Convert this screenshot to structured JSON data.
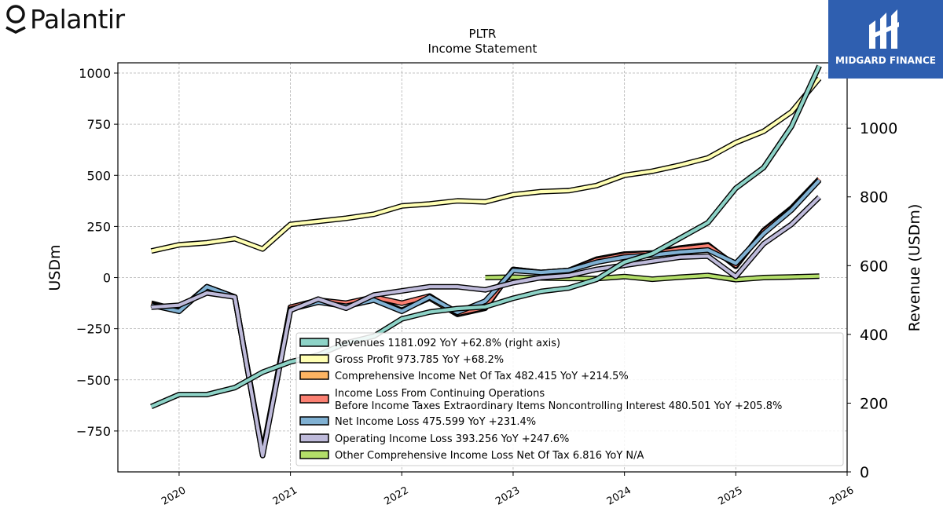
{
  "brand": {
    "name": "Palantir",
    "badge": "MIDGARD FINANCE",
    "badge_color": "#2f5fb0"
  },
  "chart_data": {
    "type": "line",
    "title": "PLTR",
    "subtitle": "Income Statement",
    "ylabel": "USDm",
    "y2label": "Revenue (USDm)",
    "xlim": [
      2019.45,
      2026.0
    ],
    "ylim": [
      -950,
      1050
    ],
    "y2lim": [
      0,
      1190
    ],
    "yticks": [
      -750,
      -500,
      -250,
      0,
      250,
      500,
      750,
      1000
    ],
    "ytick_labels": [
      "−750",
      "−500",
      "−250",
      "0",
      "250",
      "500",
      "750",
      "1000"
    ],
    "y2ticks": [
      0,
      200,
      400,
      600,
      800,
      1000
    ],
    "y2tick_labels": [
      "0",
      "200",
      "400",
      "600",
      "800",
      "1000"
    ],
    "xticks": [
      2020,
      2021,
      2022,
      2023,
      2024,
      2025,
      2026
    ],
    "xtick_labels": [
      "2020",
      "2021",
      "2022",
      "2023",
      "2024",
      "2025",
      "2026"
    ],
    "grid": true,
    "legend_position": "lower-right",
    "series": [
      {
        "name": "Revenues 1181.092 YoY +62.8% (right axis)",
        "axis": "right",
        "color": "#8dd3c7",
        "x": [
          2019.75,
          2020.0,
          2020.25,
          2020.5,
          2020.75,
          2021.0,
          2021.25,
          2021.5,
          2021.75,
          2022.0,
          2022.25,
          2022.5,
          2022.75,
          2023.0,
          2023.25,
          2023.5,
          2023.75,
          2024.0,
          2024.25,
          2024.5,
          2024.75,
          2025.0,
          2025.25,
          2025.5,
          2025.75
        ],
        "values": [
          190,
          225,
          225,
          245,
          290,
          320,
          340,
          375,
          395,
          445,
          465,
          475,
          480,
          505,
          525,
          535,
          560,
          610,
          635,
          680,
          725,
          825,
          885,
          1005,
          1181
        ]
      },
      {
        "name": "Gross Profit 973.785 YoY +68.2%",
        "axis": "left",
        "color": "#ffffb3",
        "x": [
          2019.75,
          2020.0,
          2020.25,
          2020.5,
          2020.75,
          2021.0,
          2021.25,
          2021.5,
          2021.75,
          2022.0,
          2022.25,
          2022.5,
          2022.75,
          2023.0,
          2023.25,
          2023.5,
          2023.75,
          2024.0,
          2024.25,
          2024.5,
          2024.75,
          2025.0,
          2025.25,
          2025.5,
          2025.75
        ],
        "values": [
          130,
          160,
          170,
          190,
          140,
          260,
          275,
          290,
          310,
          350,
          360,
          375,
          370,
          405,
          420,
          425,
          450,
          500,
          520,
          550,
          585,
          660,
          715,
          810,
          974
        ]
      },
      {
        "name": "Comprehensive Income Net Of Tax 482.415 YoY +214.5%",
        "axis": "left",
        "color": "#fdb462",
        "x": [
          2019.75,
          2020.0,
          2020.25,
          2020.5,
          2020.75,
          2021.0,
          2021.25,
          2021.5,
          2021.75,
          2022.0,
          2022.25,
          2022.5,
          2022.75,
          2023.0,
          2023.25,
          2023.5,
          2023.75,
          2024.0,
          2024.25,
          2024.5,
          2024.75,
          2025.0,
          2025.25,
          2025.5,
          2025.75
        ],
        "values": [
          -125,
          -160,
          -45,
          -95,
          -865,
          -145,
          -115,
          -130,
          -105,
          -160,
          -100,
          -180,
          -150,
          40,
          25,
          35,
          90,
          115,
          120,
          145,
          160,
          55,
          230,
          340,
          482
        ]
      },
      {
        "name": "Income Loss From Continuing Operations\nBefore Income Taxes Extraordinary Items Noncontrolling Interest 480.501 YoY +205.8%",
        "axis": "left",
        "color": "#fb8072",
        "x": [
          2019.75,
          2020.0,
          2020.25,
          2020.5,
          2020.75,
          2021.0,
          2021.25,
          2021.5,
          2021.75,
          2022.0,
          2022.25,
          2022.5,
          2022.75,
          2023.0,
          2023.25,
          2023.5,
          2023.75,
          2024.0,
          2024.25,
          2024.5,
          2024.75,
          2025.0,
          2025.25,
          2025.5,
          2025.75
        ],
        "values": [
          -130,
          -165,
          -45,
          -95,
          -855,
          -145,
          -110,
          -125,
          -95,
          -125,
          -90,
          -175,
          -145,
          40,
          25,
          35,
          85,
          110,
          118,
          140,
          155,
          60,
          225,
          335,
          481
        ]
      },
      {
        "name": "Net Income Loss 475.599 YoY +231.4%",
        "axis": "left",
        "color": "#80b1d3",
        "x": [
          2019.75,
          2020.0,
          2020.25,
          2020.5,
          2020.75,
          2021.0,
          2021.25,
          2021.5,
          2021.75,
          2022.0,
          2022.25,
          2022.5,
          2022.75,
          2023.0,
          2023.25,
          2023.5,
          2023.75,
          2024.0,
          2024.25,
          2024.5,
          2024.75,
          2025.0,
          2025.25,
          2025.5,
          2025.75
        ],
        "values": [
          -135,
          -165,
          -45,
          -95,
          -865,
          -155,
          -120,
          -140,
          -110,
          -165,
          -95,
          -170,
          -115,
          35,
          25,
          35,
          75,
          100,
          110,
          125,
          135,
          70,
          215,
          330,
          476
        ]
      },
      {
        "name": "Operating Income Loss 393.256 YoY +247.6%",
        "axis": "left",
        "color": "#bebada",
        "x": [
          2019.75,
          2020.0,
          2020.25,
          2020.5,
          2020.75,
          2021.0,
          2021.25,
          2021.5,
          2021.75,
          2022.0,
          2022.25,
          2022.5,
          2022.75,
          2023.0,
          2023.25,
          2023.5,
          2023.75,
          2024.0,
          2024.25,
          2024.5,
          2024.75,
          2025.0,
          2025.25,
          2025.5,
          2025.75
        ],
        "values": [
          -145,
          -135,
          -75,
          -95,
          -870,
          -160,
          -105,
          -150,
          -85,
          -65,
          -45,
          -45,
          -60,
          -25,
          0,
          10,
          40,
          60,
          80,
          100,
          105,
          5,
          165,
          260,
          393
        ]
      },
      {
        "name": "Other Comprehensive Income Loss Net Of Tax 6.816 YoY N/A",
        "axis": "left",
        "color": "#b3de69",
        "x": [
          2022.75,
          2023.0,
          2023.25,
          2023.5,
          2023.75,
          2024.0,
          2024.25,
          2024.5,
          2024.75,
          2025.0,
          2025.25,
          2025.5,
          2025.75
        ],
        "values": [
          0,
          2,
          -2,
          -4,
          -5,
          5,
          -8,
          2,
          10,
          -10,
          0,
          3,
          7
        ]
      }
    ]
  }
}
